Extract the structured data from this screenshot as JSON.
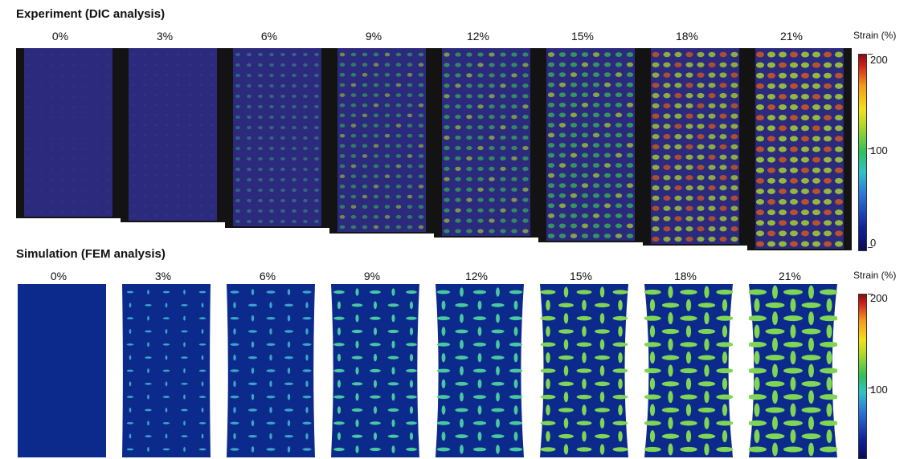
{
  "experiment": {
    "title": "Experiment (DIC analysis)",
    "strains": [
      "0%",
      "3%",
      "6%",
      "9%",
      "12%",
      "15%",
      "18%",
      "21%"
    ]
  },
  "simulation": {
    "title": "Simulation (FEM analysis)",
    "strains": [
      "0%",
      "3%",
      "6%",
      "9%",
      "12%",
      "15%",
      "18%",
      "21%"
    ]
  },
  "colorbar": {
    "title": "Strain (%)",
    "ticks": [
      "200",
      "100",
      "0"
    ]
  },
  "colors": {
    "low": "#12249c",
    "mid": "#2fbf5a",
    "high": "#d0261d"
  }
}
